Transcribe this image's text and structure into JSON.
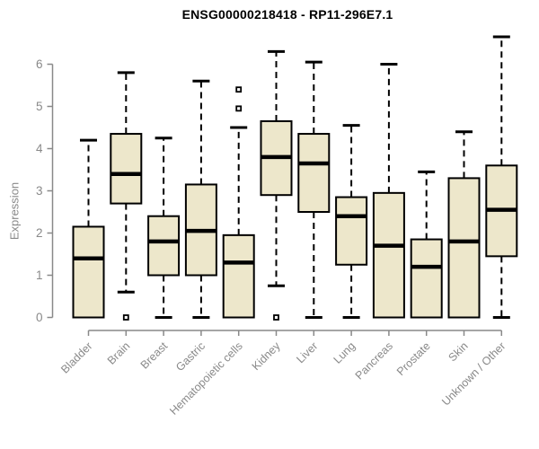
{
  "chart_data": {
    "type": "boxplot",
    "title": "ENSG00000218418 - RP11-296E7.1",
    "ylabel": "Expression",
    "xlabel": "",
    "ylim": [
      0,
      6.7
    ],
    "yticks": [
      0,
      1,
      2,
      3,
      4,
      5,
      6
    ],
    "grid": false,
    "legend": "none",
    "categories": [
      "Bladder",
      "Brain",
      "Breast",
      "Gastric",
      "Hematopoietic cells",
      "Kidney",
      "Liver",
      "Lung",
      "Pancreas",
      "Prostate",
      "Skin",
      "Unknown / Other"
    ],
    "boxes": [
      {
        "category": "Bladder",
        "whisker_low": 0,
        "q1": 0,
        "median": 1.4,
        "q3": 2.15,
        "whisker_high": 4.2,
        "outliers": []
      },
      {
        "category": "Brain",
        "whisker_low": 0.6,
        "q1": 2.7,
        "median": 3.4,
        "q3": 4.35,
        "whisker_high": 5.8,
        "outliers": [
          0
        ]
      },
      {
        "category": "Breast",
        "whisker_low": 0,
        "q1": 1.0,
        "median": 1.8,
        "q3": 2.4,
        "whisker_high": 4.25,
        "outliers": []
      },
      {
        "category": "Gastric",
        "whisker_low": 0,
        "q1": 1.0,
        "median": 2.05,
        "q3": 3.15,
        "whisker_high": 5.6,
        "outliers": []
      },
      {
        "category": "Hematopoietic cells",
        "whisker_low": 0,
        "q1": 0,
        "median": 1.3,
        "q3": 1.95,
        "whisker_high": 4.5,
        "outliers": [
          4.95,
          5.4
        ]
      },
      {
        "category": "Kidney",
        "whisker_low": 0.75,
        "q1": 2.9,
        "median": 3.8,
        "q3": 4.65,
        "whisker_high": 6.3,
        "outliers": [
          0
        ]
      },
      {
        "category": "Liver",
        "whisker_low": 0,
        "q1": 2.5,
        "median": 3.65,
        "q3": 4.35,
        "whisker_high": 6.05,
        "outliers": []
      },
      {
        "category": "Lung",
        "whisker_low": 0,
        "q1": 1.25,
        "median": 2.4,
        "q3": 2.85,
        "whisker_high": 4.55,
        "outliers": []
      },
      {
        "category": "Pancreas",
        "whisker_low": 0,
        "q1": 0,
        "median": 1.7,
        "q3": 2.95,
        "whisker_high": 6.0,
        "outliers": []
      },
      {
        "category": "Prostate",
        "whisker_low": 0,
        "q1": 0,
        "median": 1.2,
        "q3": 1.85,
        "whisker_high": 3.45,
        "outliers": []
      },
      {
        "category": "Skin",
        "whisker_low": 0,
        "q1": 0,
        "median": 1.8,
        "q3": 3.3,
        "whisker_high": 4.4,
        "outliers": []
      },
      {
        "category": "Unknown / Other",
        "whisker_low": 0,
        "q1": 1.45,
        "median": 2.55,
        "q3": 3.6,
        "whisker_high": 6.65,
        "outliers": []
      }
    ],
    "colors": {
      "box_fill": "#EDE7CB",
      "box_border": "#000000",
      "median": "#000000",
      "whisker": "#000000",
      "outlier_stroke": "#000000",
      "outlier_fill": "#ffffff",
      "axis": "#898989",
      "tick_label": "#898989",
      "title": "#000000",
      "background": "#ffffff"
    }
  }
}
